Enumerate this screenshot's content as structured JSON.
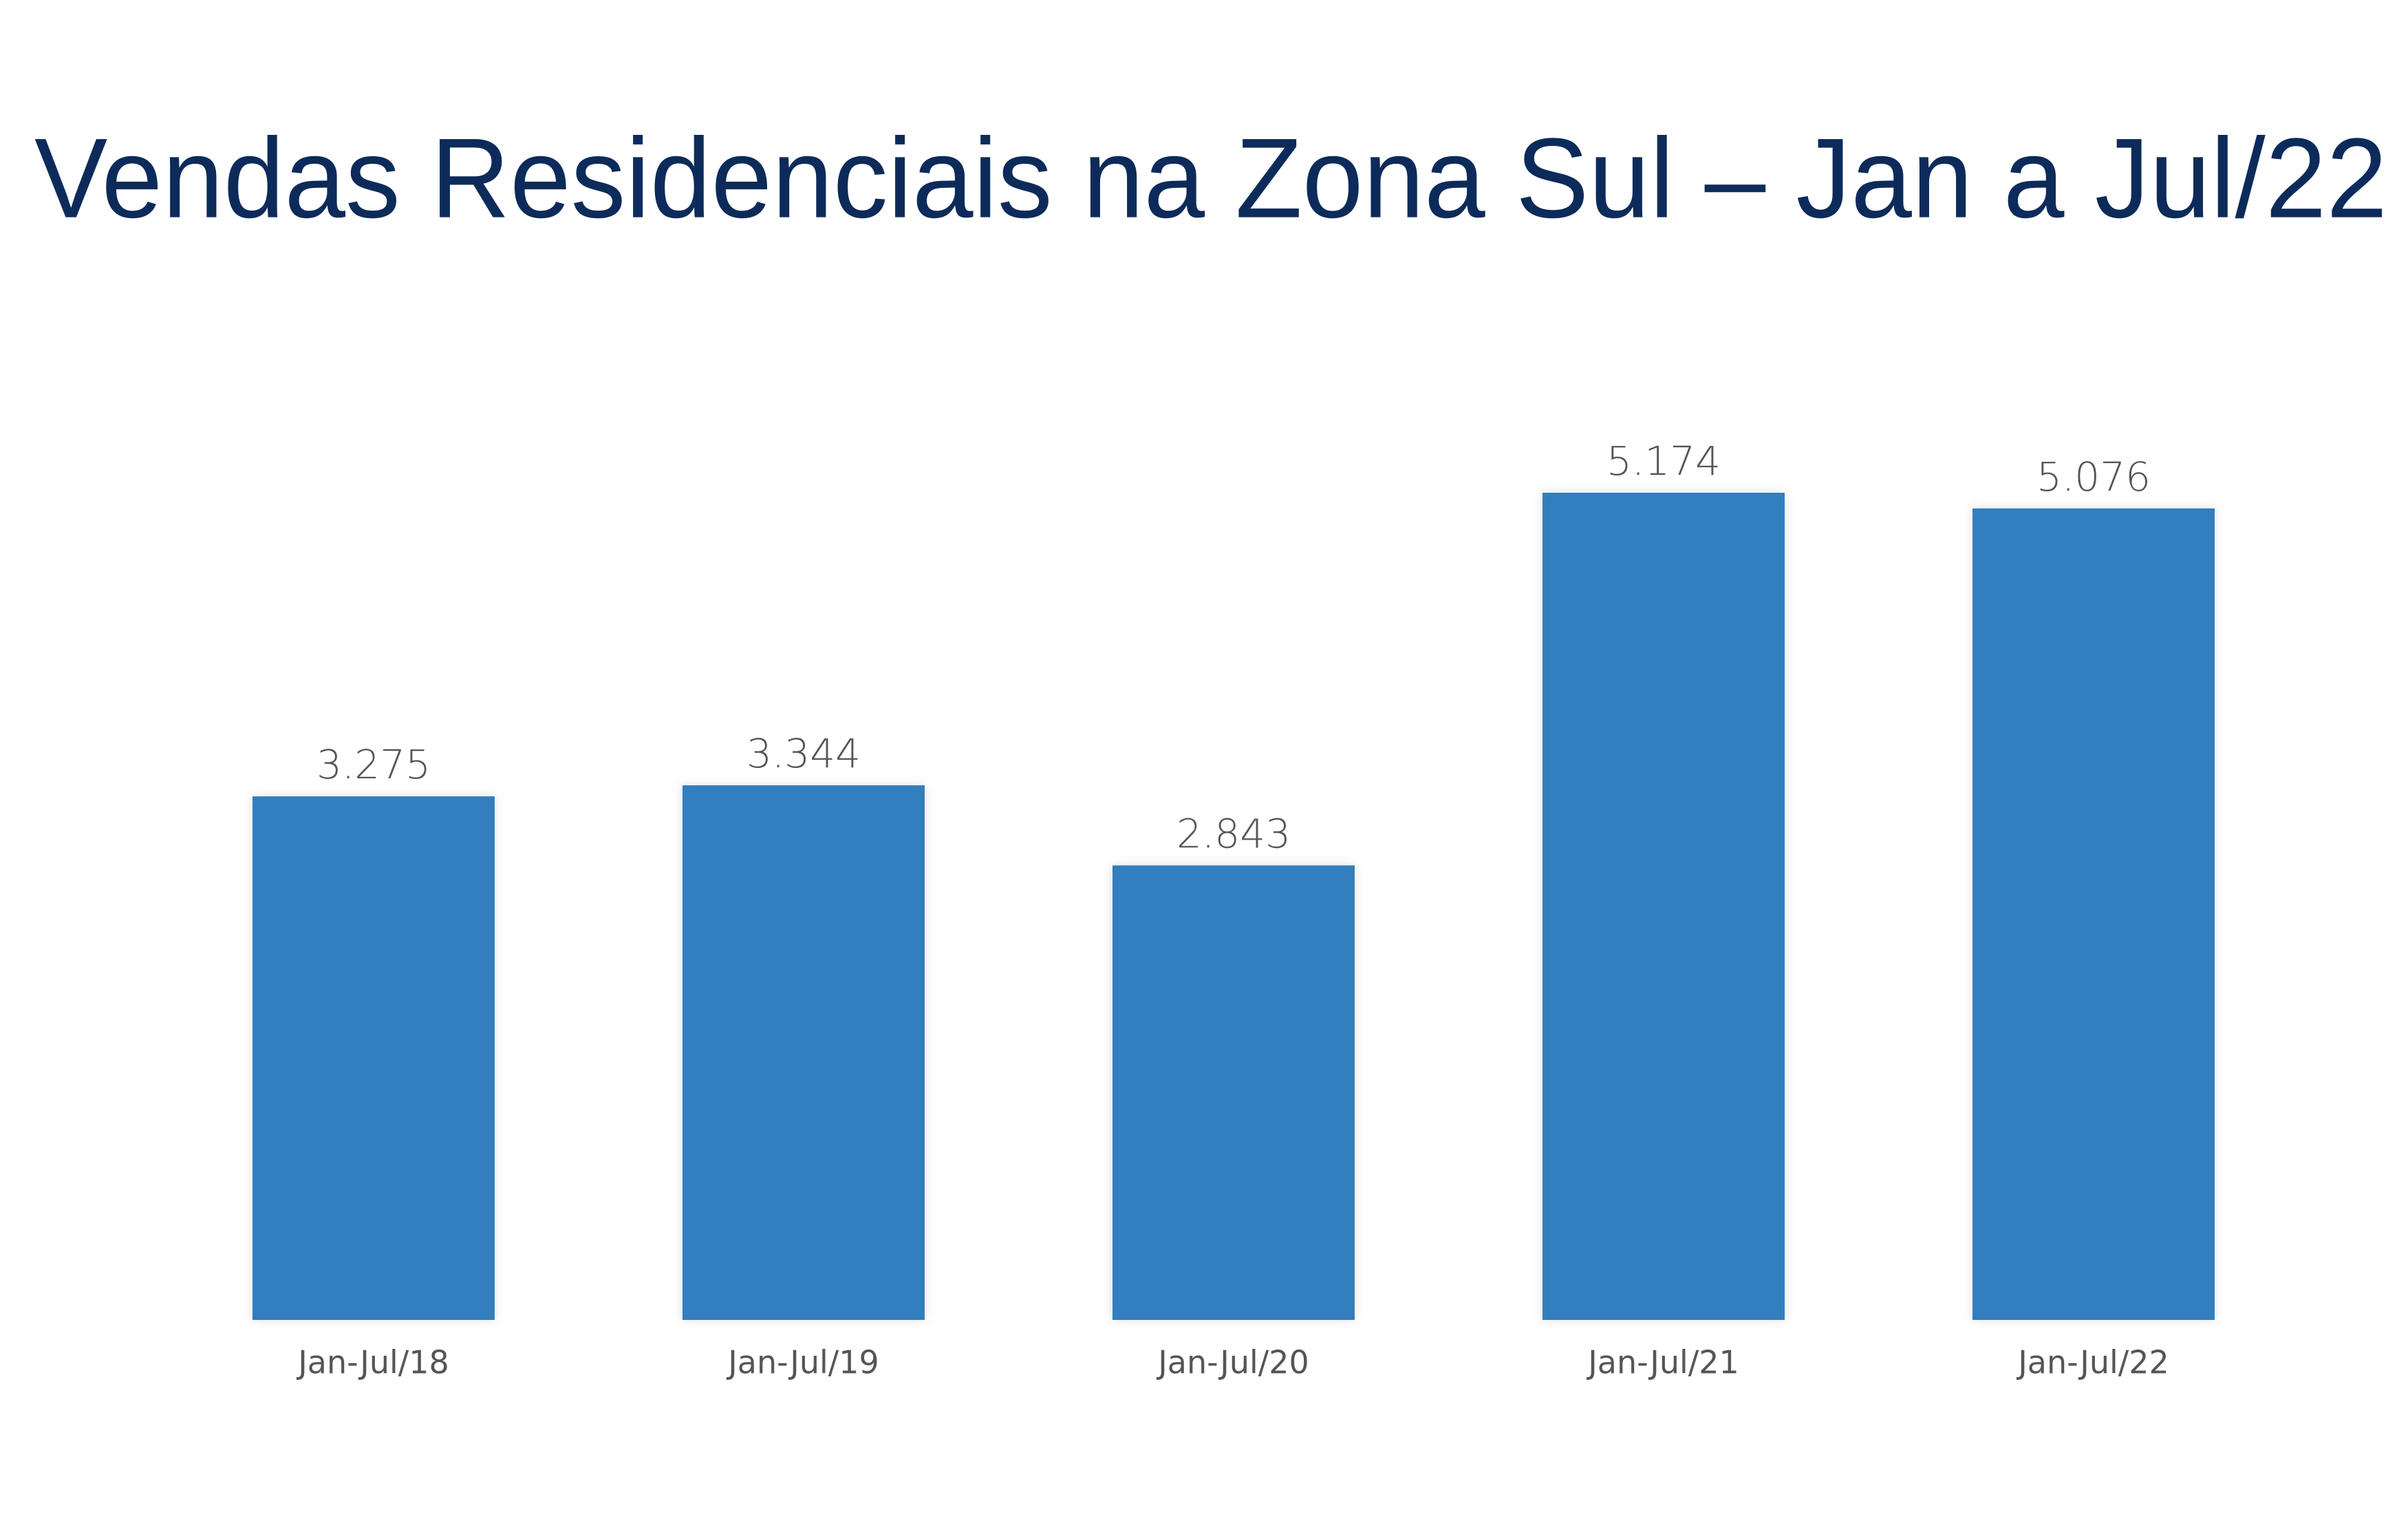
{
  "chart_data": {
    "type": "bar",
    "title": "Vendas Residenciais na Zona Sul – Jan a Jul/22",
    "categories": [
      "Jan-Jul/18",
      "Jan-Jul/19",
      "Jan-Jul/20",
      "Jan-Jul/21",
      "Jan-Jul/22"
    ],
    "values": [
      3275,
      3344,
      2843,
      5174,
      5076
    ],
    "value_labels": [
      "3.275",
      "3.344",
      "2.843",
      "5.174",
      "5.076"
    ],
    "color": "#337ebe"
  }
}
